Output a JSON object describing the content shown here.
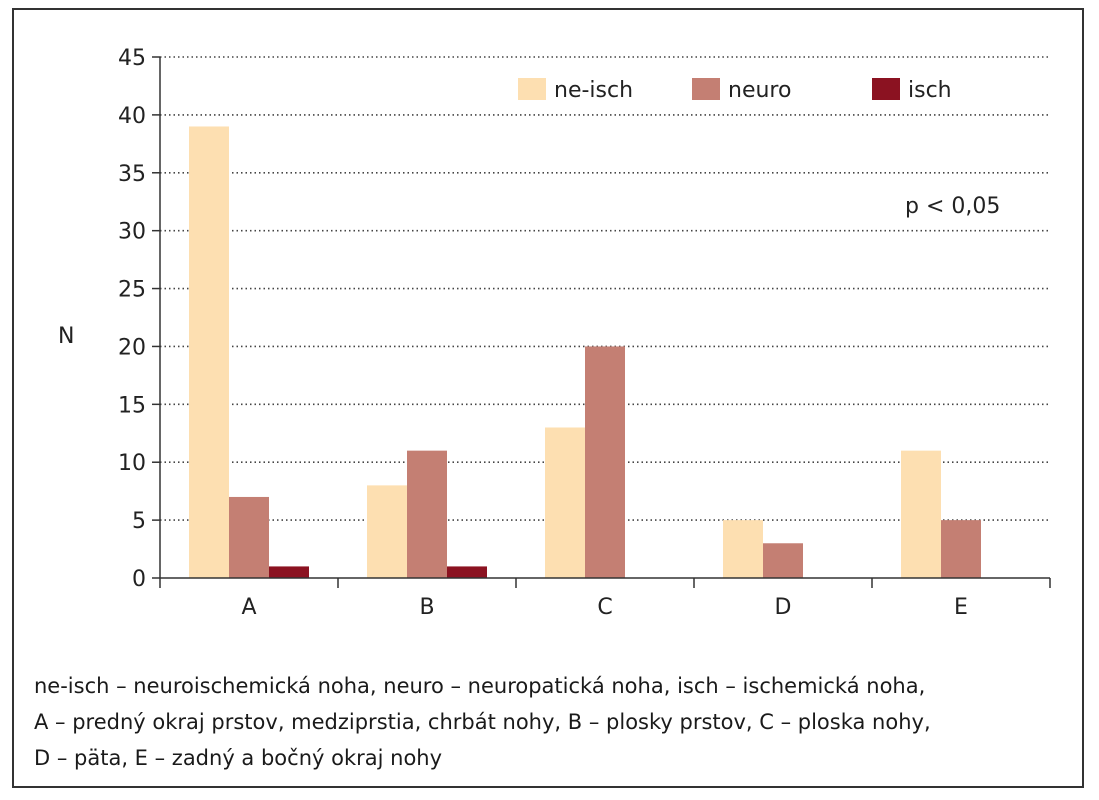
{
  "chart_data": {
    "type": "bar",
    "categories": [
      "A",
      "B",
      "C",
      "D",
      "E"
    ],
    "series": [
      {
        "name": "ne-isch",
        "color": "#fddfb1",
        "values": [
          39,
          8,
          13,
          5,
          11
        ]
      },
      {
        "name": "neuro",
        "color": "#c47f73",
        "values": [
          7,
          11,
          20,
          3,
          5
        ]
      },
      {
        "name": "isch",
        "color": "#8b1221",
        "values": [
          1,
          1,
          0,
          0,
          0
        ]
      }
    ],
    "ylabel": "N",
    "ylim": [
      0,
      45
    ],
    "yticks": [
      0,
      5,
      10,
      15,
      20,
      25,
      30,
      35,
      40,
      45
    ],
    "grid": "dotted horizontal",
    "legend_position": "top-right",
    "annotation": "p < 0,05"
  },
  "caption": {
    "lines": [
      "ne-isch – neuroischemická noha, neuro – neuropatická noha, isch – ischemická noha,",
      "A – predný okraj prstov, medziprstia, chrbát nohy, B – plosky prstov, C – ploska nohy,",
      "D – päta, E – zadný a bočný okraj nohy"
    ]
  }
}
